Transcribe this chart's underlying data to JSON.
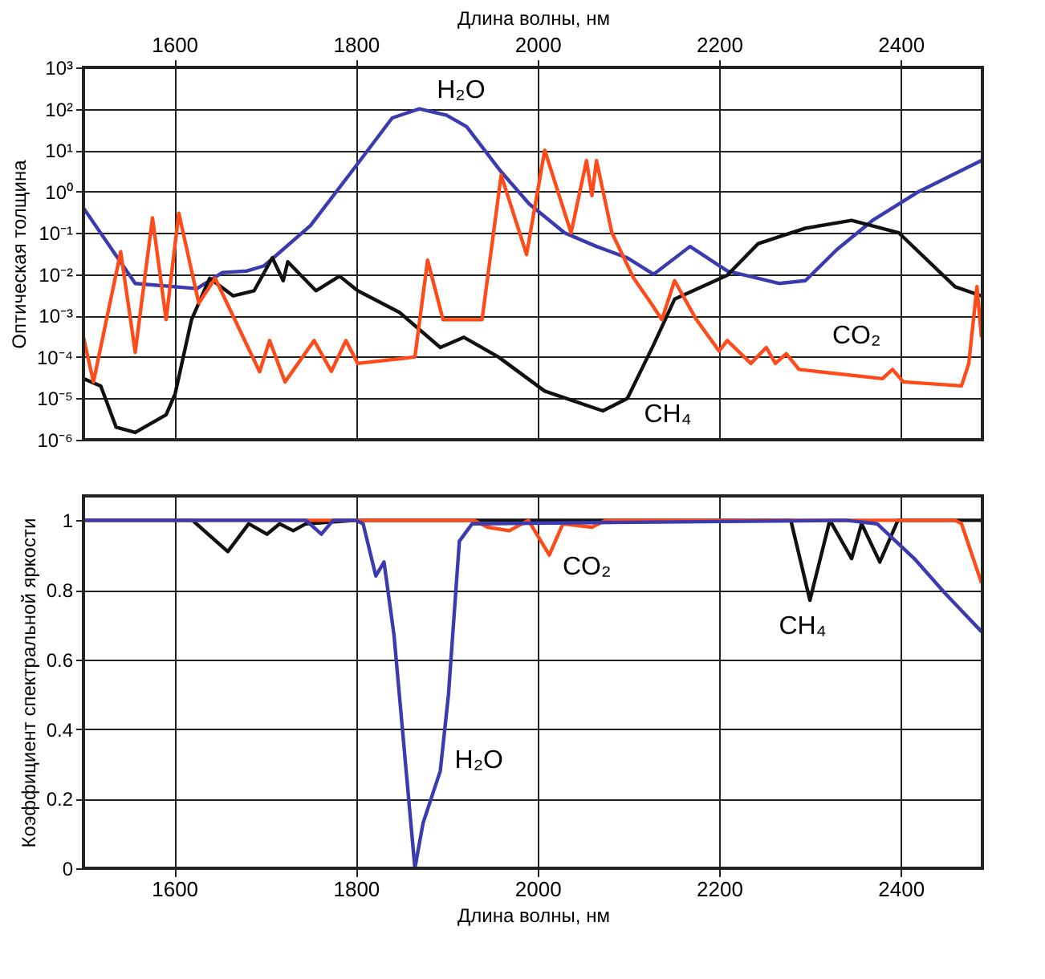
{
  "chart_data": [
    {
      "type": "line",
      "xlabel": "Длина волны, нм",
      "ylabel": "Оптическая толщина",
      "log": "y",
      "grid": true,
      "xlim": [
        1500,
        2490
      ],
      "xticks": [
        1600,
        1800,
        2000,
        2200,
        2400
      ],
      "ylim": [
        1e-06,
        1000
      ],
      "yticks": [
        {
          "value": 1e-06,
          "label": "10⁻⁶"
        },
        {
          "value": 1e-05,
          "label": "10⁻⁵"
        },
        {
          "value": 0.0001,
          "label": "10⁻⁴"
        },
        {
          "value": 0.001,
          "label": "10⁻³"
        },
        {
          "value": 0.01,
          "label": "10⁻²"
        },
        {
          "value": 0.1,
          "label": "10⁻¹"
        },
        {
          "value": 1,
          "label": "10⁰"
        },
        {
          "value": 10,
          "label": "10¹"
        },
        {
          "value": 100,
          "label": "10²"
        },
        {
          "value": 1000,
          "label": "10³"
        }
      ],
      "series": [
        {
          "color": "#3b3bb0",
          "x": [
            1500,
            1557,
            1625,
            1653,
            1680,
            1699,
            1750,
            1802,
            1840,
            1870,
            1900,
            1922,
            1960,
            1991,
            2030,
            2065,
            2099,
            2128,
            2168,
            2209,
            2266,
            2295,
            2330,
            2369,
            2420,
            2489
          ],
          "values": [
            0.4,
            0.006,
            0.0045,
            0.011,
            0.012,
            0.016,
            0.15,
            4.7,
            60,
            100,
            70,
            37,
            3,
            0.5,
            0.1,
            0.047,
            0.025,
            0.01,
            0.047,
            0.012,
            0.006,
            0.007,
            0.04,
            0.2,
            1,
            5.6
          ]
        },
        {
          "color": "#111111",
          "x": [
            1500,
            1519,
            1536,
            1557,
            1591,
            1601,
            1619,
            1639,
            1665,
            1688,
            1708,
            1720,
            1725,
            1756,
            1782,
            1802,
            1848,
            1893,
            1919,
            1957,
            2008,
            2072,
            2099,
            2128,
            2151,
            2209,
            2243,
            2295,
            2346,
            2398,
            2460,
            2489
          ],
          "values": [
            3e-05,
            2e-05,
            2e-06,
            1.5e-06,
            4e-06,
            1.3e-05,
            0.0008,
            0.008,
            0.003,
            0.004,
            0.025,
            0.007,
            0.02,
            0.004,
            0.009,
            0.004,
            0.0012,
            0.00017,
            0.0003,
            0.0001,
            1.5e-05,
            5e-06,
            1e-05,
            0.0002,
            0.0025,
            0.0095,
            0.055,
            0.13,
            0.2,
            0.1,
            0.005,
            0.003
          ]
        },
        {
          "color": "#ff4a1a",
          "x": [
            1500,
            1511,
            1541,
            1557,
            1576,
            1591,
            1605,
            1627,
            1645,
            1694,
            1705,
            1722,
            1754,
            1773,
            1789,
            1802,
            1865,
            1879,
            1896,
            1939,
            1960,
            1988,
            2008,
            2037,
            2054,
            2060,
            2065,
            2082,
            2106,
            2125,
            2137,
            2151,
            2175,
            2200,
            2209,
            2235,
            2252,
            2262,
            2274,
            2288,
            2380,
            2391,
            2403,
            2467,
            2475,
            2484,
            2489
          ],
          "values": [
            0.0003,
            2.5e-05,
            0.035,
            0.00013,
            0.23,
            0.0008,
            0.3,
            0.002,
            0.008,
            4.4e-05,
            0.00025,
            2.5e-05,
            0.00025,
            4.5e-05,
            0.00025,
            7e-05,
            0.0001,
            0.022,
            0.0008,
            0.0008,
            2.5,
            0.03,
            10,
            0.1,
            5.6,
            0.8,
            5.6,
            0.1,
            0.008,
            0.002,
            0.0008,
            0.007,
            0.0008,
            0.00014,
            0.00025,
            7e-05,
            0.00017,
            7e-05,
            0.00012,
            5e-05,
            3e-05,
            5e-05,
            2.5e-05,
            2e-05,
            7e-05,
            0.005,
            0.0003
          ]
        }
      ],
      "annotations": [
        "H₂O",
        "CO₂",
        "CH₄"
      ]
    },
    {
      "type": "line",
      "xlabel": "Длина волны, нм",
      "ylabel": "Коэффициент спектральной яркости",
      "grid": true,
      "xlim": [
        1500,
        2490
      ],
      "xticks": [
        1600,
        1800,
        2000,
        2200,
        2400
      ],
      "ylim": [
        0,
        1.07
      ],
      "yticks": [
        0,
        0.2,
        0.4,
        0.6,
        0.8,
        1
      ],
      "series": [
        {
          "color": "#111111",
          "x": [
            1500,
            1620,
            1659,
            1682,
            1702,
            1716,
            1731,
            1745,
            1800,
            2270,
            2279,
            2300,
            2322,
            2346,
            2357,
            2377,
            2397,
            2489
          ],
          "values": [
            1,
            1,
            0.91,
            0.99,
            0.96,
            0.99,
            0.97,
            0.99,
            1,
            1,
            1,
            0.77,
            1,
            0.89,
            0.99,
            0.88,
            1,
            1
          ]
        },
        {
          "color": "#ff4a1a",
          "x": [
            1500,
            1930,
            1945,
            1969,
            1990,
            2013,
            2028,
            2060,
            2075,
            2460,
            2467,
            2489
          ],
          "values": [
            1,
            1,
            0.98,
            0.97,
            1,
            0.9,
            0.99,
            0.98,
            1,
            1,
            0.99,
            0.82
          ]
        },
        {
          "color": "#3b3bb0",
          "x": [
            1500,
            1745,
            1762,
            1775,
            1800,
            1808,
            1822,
            1831,
            1842,
            1865,
            1874,
            1893,
            1902,
            1914,
            1928,
            2340,
            2374,
            2415,
            2449,
            2489
          ],
          "values": [
            1,
            1,
            0.96,
            1,
            1,
            0.99,
            0.84,
            0.88,
            0.67,
            0,
            0.13,
            0.28,
            0.5,
            0.94,
            0.99,
            1,
            0.99,
            0.89,
            0.79,
            0.68
          ]
        }
      ],
      "annotations": [
        "CO₂",
        "CH₄",
        "H₂O"
      ]
    }
  ]
}
